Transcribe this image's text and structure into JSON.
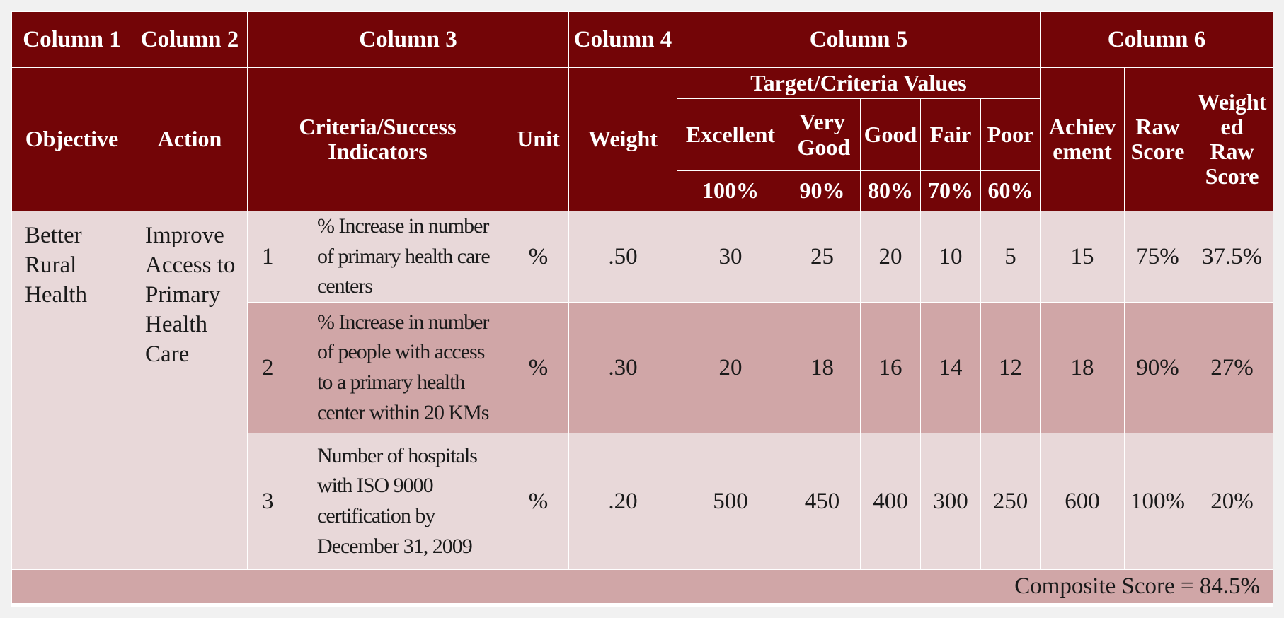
{
  "header": {
    "columns": [
      "Column 1",
      "Column 2",
      "Column 3",
      "Column 4",
      "Column 5",
      "Column 6"
    ],
    "objective": "Objective",
    "action": "Action",
    "criteria": "Criteria/Success Indicators",
    "unit": "Unit",
    "weight": "Weight",
    "target_values": "Target/Criteria Values",
    "levels": [
      {
        "label": "Excellent",
        "pct": "100%"
      },
      {
        "label": "Very Good",
        "pct": "90%"
      },
      {
        "label": "Good",
        "pct": "80%"
      },
      {
        "label": "Fair",
        "pct": "70%"
      },
      {
        "label": "Poor",
        "pct": "60%"
      }
    ],
    "achievement": "Achiev ement",
    "raw_score": "Raw Score",
    "weighted_raw_score": "Weight ed Raw Score"
  },
  "objective": "Better Rural Health",
  "action": "Improve Access to Primary Health Care",
  "rows": [
    {
      "num": "1",
      "indicator": "% Increase in number of primary health care centers",
      "unit": "%",
      "weight": ".50",
      "targets": [
        "30",
        "25",
        "20",
        "10",
        "5"
      ],
      "achievement": "15",
      "raw_score": "75%",
      "weighted": "37.5%"
    },
    {
      "num": "2",
      "indicator": "% Increase in number of people with access to a primary health center within 20 KMs",
      "unit": "%",
      "weight": ".30",
      "targets": [
        "20",
        "18",
        "16",
        "14",
        "12"
      ],
      "achievement": "18",
      "raw_score": "90%",
      "weighted": "27%"
    },
    {
      "num": "3",
      "indicator": "Number of hospitals with ISO 9000 certification by December 31, 2009",
      "unit": "%",
      "weight": ".20",
      "targets": [
        "500",
        "450",
        "400",
        "300",
        "250"
      ],
      "achievement": "600",
      "raw_score": "100%",
      "weighted": "20%"
    }
  ],
  "composite": "Composite Score = 84.5%",
  "colors": {
    "header_bg": "#730507",
    "row_light": "#e8d8d9",
    "row_dark": "#d0a6a7"
  }
}
